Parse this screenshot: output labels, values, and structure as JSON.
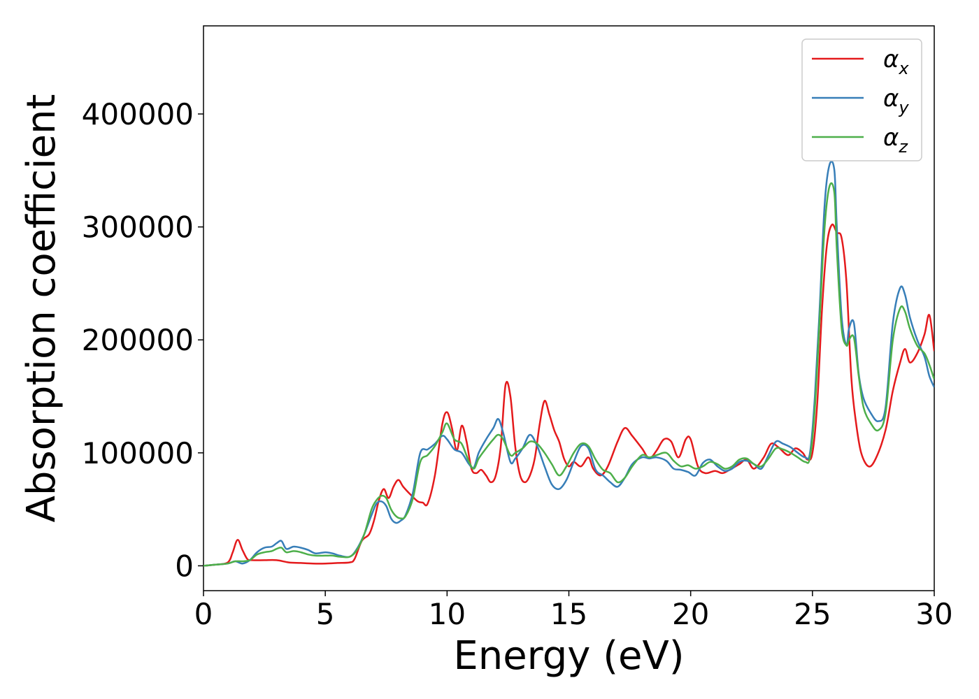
{
  "chart_data": {
    "type": "line",
    "xlabel": "Energy (eV)",
    "ylabel": "Absorption coefficient",
    "xlim": [
      0,
      30
    ],
    "ylim": [
      -22000,
      478000
    ],
    "xticks": [
      0,
      5,
      10,
      15,
      20,
      25,
      30
    ],
    "yticks": [
      0,
      100000,
      200000,
      300000,
      400000
    ],
    "grid": false,
    "legend_position": "top-right",
    "series": [
      {
        "name": "α",
        "subscript": "x",
        "color": "#e41a1c",
        "x": [
          0,
          0.5,
          1.0,
          1.2,
          1.4,
          1.6,
          1.8,
          2.0,
          2.5,
          3.0,
          3.5,
          4.0,
          4.5,
          5.0,
          5.5,
          6.0,
          6.2,
          6.5,
          6.8,
          7.0,
          7.2,
          7.4,
          7.6,
          7.8,
          8.0,
          8.2,
          8.5,
          8.8,
          9.0,
          9.2,
          9.5,
          9.8,
          10.0,
          10.2,
          10.4,
          10.6,
          10.8,
          11.0,
          11.2,
          11.4,
          11.6,
          11.8,
          12.0,
          12.2,
          12.4,
          12.6,
          12.8,
          13.0,
          13.2,
          13.4,
          13.6,
          13.8,
          14.0,
          14.2,
          14.4,
          14.6,
          14.8,
          15.0,
          15.2,
          15.5,
          15.8,
          16.0,
          16.3,
          16.6,
          17.0,
          17.3,
          17.6,
          18.0,
          18.3,
          18.6,
          18.9,
          19.2,
          19.5,
          19.8,
          20.0,
          20.3,
          20.6,
          21.0,
          21.3,
          21.6,
          22.0,
          22.3,
          22.6,
          23.0,
          23.3,
          23.6,
          24.0,
          24.3,
          24.6,
          24.8,
          25.0,
          25.2,
          25.4,
          25.6,
          25.8,
          26.0,
          26.2,
          26.4,
          26.6,
          26.8,
          27.0,
          27.3,
          27.6,
          28.0,
          28.3,
          28.6,
          28.8,
          29.0,
          29.3,
          29.6,
          29.8,
          30.0
        ],
        "values": [
          0,
          1000,
          3000,
          12000,
          23000,
          14000,
          6000,
          5000,
          5000,
          5000,
          3000,
          2500,
          2000,
          2000,
          2500,
          3000,
          6000,
          22000,
          28000,
          40000,
          58000,
          68000,
          60000,
          70000,
          76000,
          70000,
          63000,
          57000,
          56000,
          55000,
          80000,
          125000,
          136000,
          122000,
          102000,
          124000,
          110000,
          86000,
          82000,
          85000,
          80000,
          74000,
          80000,
          105000,
          160000,
          150000,
          105000,
          80000,
          74000,
          80000,
          95000,
          125000,
          146000,
          134000,
          120000,
          110000,
          95000,
          88000,
          92000,
          88000,
          96000,
          86000,
          80000,
          88000,
          110000,
          122000,
          115000,
          104000,
          95000,
          102000,
          112000,
          110000,
          96000,
          112000,
          112000,
          88000,
          82000,
          84000,
          82000,
          85000,
          90000,
          94000,
          86000,
          96000,
          108000,
          105000,
          98000,
          104000,
          100000,
          94000,
          100000,
          145000,
          230000,
          285000,
          302000,
          295000,
          290000,
          250000,
          165000,
          125000,
          100000,
          88000,
          95000,
          120000,
          155000,
          180000,
          192000,
          180000,
          188000,
          205000,
          222000,
          190000
        ]
      },
      {
        "name": "α",
        "subscript": "y",
        "color": "#377eb8",
        "x": [
          0,
          0.5,
          1.0,
          1.3,
          1.6,
          1.9,
          2.2,
          2.5,
          2.8,
          3.0,
          3.2,
          3.4,
          3.7,
          4.0,
          4.3,
          4.6,
          5.0,
          5.3,
          5.6,
          6.0,
          6.3,
          6.6,
          6.9,
          7.1,
          7.3,
          7.5,
          7.7,
          7.9,
          8.1,
          8.3,
          8.6,
          8.9,
          9.2,
          9.5,
          9.8,
          10.0,
          10.3,
          10.6,
          10.9,
          11.1,
          11.3,
          11.6,
          11.9,
          12.1,
          12.3,
          12.6,
          12.8,
          13.1,
          13.4,
          13.7,
          14.0,
          14.3,
          14.6,
          14.9,
          15.2,
          15.5,
          15.8,
          16.1,
          16.4,
          16.7,
          17.0,
          17.3,
          17.6,
          18.0,
          18.3,
          18.6,
          19.0,
          19.3,
          19.6,
          19.9,
          20.2,
          20.5,
          20.8,
          21.1,
          21.4,
          21.7,
          22.0,
          22.3,
          22.6,
          22.9,
          23.2,
          23.5,
          23.8,
          24.1,
          24.4,
          24.7,
          24.9,
          25.1,
          25.3,
          25.5,
          25.7,
          25.9,
          26.0,
          26.2,
          26.4,
          26.5,
          26.7,
          26.9,
          27.1,
          27.4,
          27.7,
          28.0,
          28.3,
          28.6,
          28.8,
          29.0,
          29.3,
          29.6,
          29.8,
          30.0
        ],
        "values": [
          0,
          1000,
          2000,
          4000,
          2000,
          5000,
          12000,
          16000,
          17000,
          20000,
          22000,
          15000,
          17000,
          16000,
          14000,
          11000,
          12000,
          11000,
          9000,
          8000,
          15000,
          28000,
          45000,
          55000,
          57000,
          53000,
          42000,
          38000,
          40000,
          45000,
          65000,
          100000,
          103000,
          108000,
          115000,
          112000,
          103000,
          100000,
          90000,
          87000,
          100000,
          112000,
          122000,
          130000,
          118000,
          92000,
          95000,
          104000,
          116000,
          106000,
          88000,
          72000,
          68000,
          76000,
          92000,
          106000,
          104000,
          85000,
          80000,
          74000,
          70000,
          78000,
          90000,
          96000,
          95000,
          96000,
          93000,
          86000,
          85000,
          83000,
          80000,
          91000,
          94000,
          88000,
          84000,
          86000,
          92000,
          93000,
          90000,
          86000,
          98000,
          110000,
          108000,
          105000,
          100000,
          96000,
          100000,
          150000,
          230000,
          320000,
          355000,
          350000,
          300000,
          220000,
          195000,
          210000,
          215000,
          170000,
          148000,
          135000,
          128000,
          140000,
          215000,
          246000,
          240000,
          220000,
          200000,
          185000,
          168000,
          158000
        ]
      },
      {
        "name": "α",
        "subscript": "z",
        "color": "#4daf4a",
        "x": [
          0,
          0.5,
          1.0,
          1.3,
          1.6,
          1.9,
          2.2,
          2.5,
          2.8,
          3.0,
          3.2,
          3.4,
          3.7,
          4.0,
          4.3,
          4.6,
          5.0,
          5.3,
          5.6,
          6.0,
          6.3,
          6.6,
          6.9,
          7.1,
          7.3,
          7.5,
          7.7,
          7.9,
          8.1,
          8.3,
          8.6,
          8.9,
          9.2,
          9.5,
          9.8,
          10.0,
          10.3,
          10.6,
          10.9,
          11.1,
          11.3,
          11.6,
          11.9,
          12.1,
          12.3,
          12.6,
          12.8,
          13.1,
          13.4,
          13.7,
          14.0,
          14.3,
          14.6,
          14.9,
          15.2,
          15.5,
          15.8,
          16.1,
          16.4,
          16.7,
          17.0,
          17.3,
          17.6,
          18.0,
          18.3,
          18.6,
          19.0,
          19.3,
          19.6,
          19.9,
          20.2,
          20.5,
          20.8,
          21.1,
          21.4,
          21.7,
          22.0,
          22.3,
          22.6,
          22.9,
          23.2,
          23.5,
          23.8,
          24.1,
          24.4,
          24.7,
          24.9,
          25.1,
          25.3,
          25.5,
          25.7,
          25.9,
          26.0,
          26.2,
          26.4,
          26.5,
          26.7,
          26.9,
          27.1,
          27.4,
          27.7,
          28.0,
          28.3,
          28.6,
          28.8,
          29.0,
          29.3,
          29.6,
          29.8,
          30.0
        ],
        "values": [
          0,
          1000,
          2000,
          4000,
          4000,
          5000,
          10000,
          12000,
          13000,
          15000,
          16000,
          12000,
          13000,
          12000,
          10000,
          9000,
          9000,
          9000,
          8000,
          8000,
          14000,
          28000,
          50000,
          58000,
          62000,
          60000,
          50000,
          44000,
          42000,
          44000,
          60000,
          92000,
          98000,
          106000,
          118000,
          126000,
          112000,
          108000,
          92000,
          86000,
          95000,
          104000,
          112000,
          116000,
          112000,
          98000,
          100000,
          104000,
          110000,
          108000,
          100000,
          90000,
          80000,
          88000,
          100000,
          108000,
          106000,
          94000,
          85000,
          82000,
          74000,
          78000,
          88000,
          98000,
          96000,
          98000,
          100000,
          93000,
          88000,
          89000,
          86000,
          88000,
          92000,
          90000,
          86000,
          88000,
          94000,
          95000,
          90000,
          88000,
          95000,
          104000,
          103000,
          100000,
          96000,
          92000,
          96000,
          140000,
          220000,
          300000,
          336000,
          330000,
          280000,
          210000,
          195000,
          200000,
          202000,
          168000,
          140000,
          126000,
          120000,
          135000,
          200000,
          228000,
          225000,
          210000,
          195000,
          188000,
          178000,
          165000
        ]
      }
    ]
  }
}
